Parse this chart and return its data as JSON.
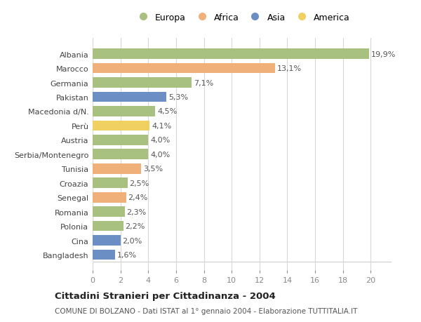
{
  "countries": [
    "Albania",
    "Marocco",
    "Germania",
    "Pakistan",
    "Macedonia d/N.",
    "Perù",
    "Austria",
    "Serbia/Montenegro",
    "Tunisia",
    "Croazia",
    "Senegal",
    "Romania",
    "Polonia",
    "Cina",
    "Bangladesh"
  ],
  "values": [
    19.9,
    13.1,
    7.1,
    5.3,
    4.5,
    4.1,
    4.0,
    4.0,
    3.5,
    2.5,
    2.4,
    2.3,
    2.2,
    2.0,
    1.6
  ],
  "labels": [
    "19,9%",
    "13,1%",
    "7,1%",
    "5,3%",
    "4,5%",
    "4,1%",
    "4,0%",
    "4,0%",
    "3,5%",
    "2,5%",
    "2,4%",
    "2,3%",
    "2,2%",
    "2,0%",
    "1,6%"
  ],
  "continents": [
    "Europa",
    "Africa",
    "Europa",
    "Asia",
    "Europa",
    "America",
    "Europa",
    "Europa",
    "Africa",
    "Europa",
    "Africa",
    "Europa",
    "Europa",
    "Asia",
    "Asia"
  ],
  "colors": {
    "Europa": "#a8c080",
    "Africa": "#f0b07a",
    "Asia": "#6b8ec4",
    "America": "#f0d060"
  },
  "legend_order": [
    "Europa",
    "Africa",
    "Asia",
    "America"
  ],
  "xlim": [
    0,
    21.5
  ],
  "xticks": [
    0,
    2,
    4,
    6,
    8,
    10,
    12,
    14,
    16,
    18,
    20
  ],
  "title": "Cittadini Stranieri per Cittadinanza - 2004",
  "subtitle": "COMUNE DI BOLZANO - Dati ISTAT al 1° gennaio 2004 - Elaborazione TUTTITALIA.IT",
  "bg_color": "#ffffff",
  "plot_bg_color": "#ffffff",
  "grid_color": "#d8d8d8",
  "label_fontsize": 8.0,
  "tick_fontsize": 8.0,
  "bar_height": 0.72
}
